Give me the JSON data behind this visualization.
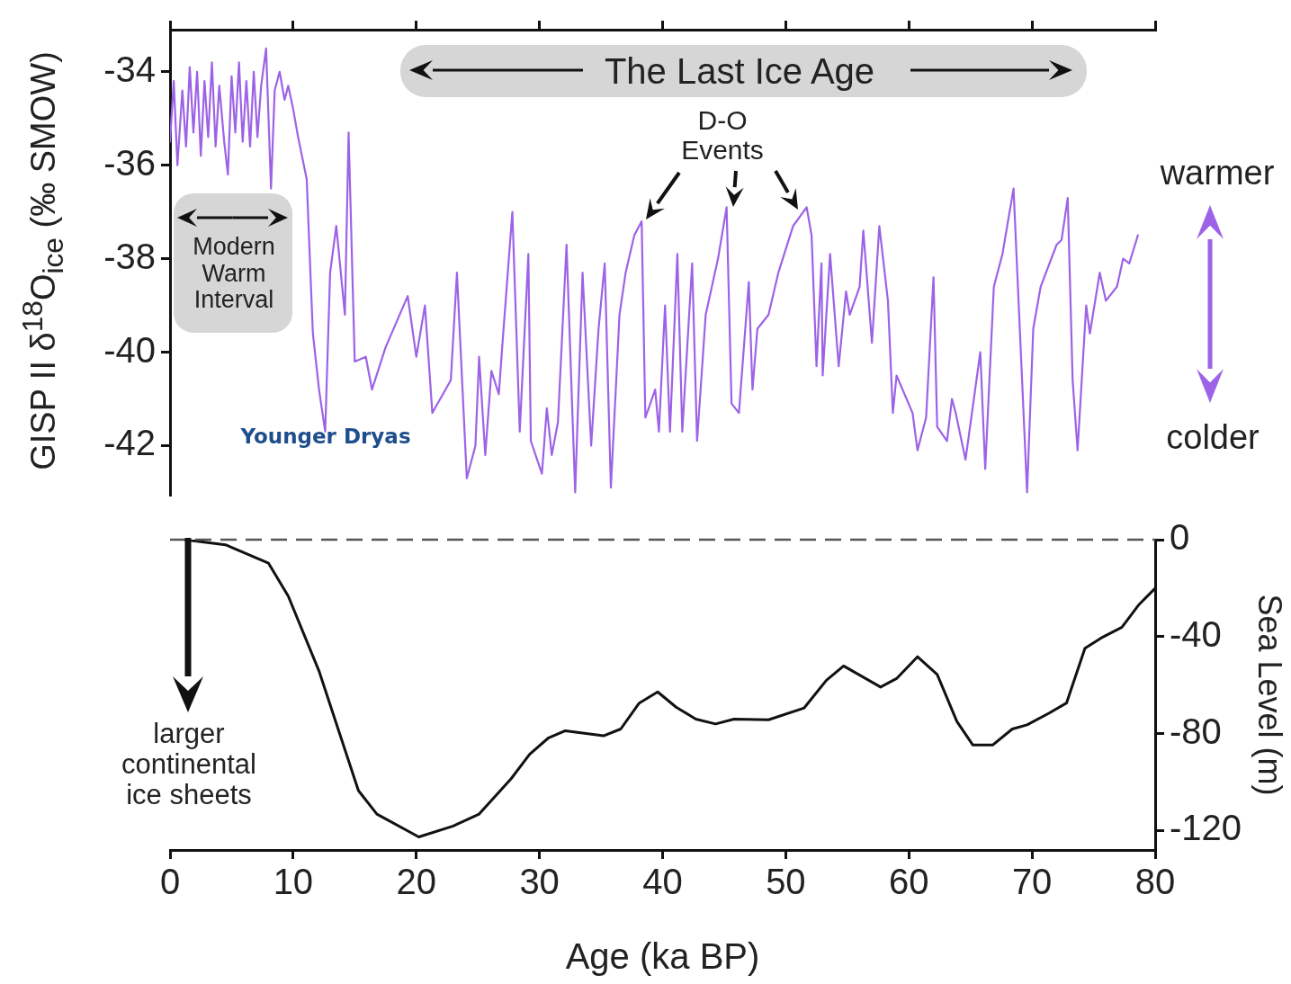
{
  "chart_data": [
    {
      "type": "line",
      "ylabel": "GISP II δ$^{18}$O$_{ice}$ (‰ SMOW)",
      "xlim": [
        0,
        80
      ],
      "xticks": [
        0,
        10,
        20,
        30,
        40,
        50,
        60,
        70,
        80
      ],
      "ylim": [
        -43.05,
        -33.1
      ],
      "yticks": [
        -34,
        -36,
        -38,
        -40,
        -42
      ],
      "tick_labels": "y",
      "legend": false,
      "annotations": [
        "The Last Ice Age",
        "D-O Events",
        "Modern Warm Interval",
        "Younger Dryas",
        "warmer",
        "colder"
      ],
      "series": [
        {
          "color": "#9d63e6",
          "x": [
            0,
            0.3,
            0.6,
            1.0,
            1.3,
            1.6,
            1.9,
            2.2,
            2.5,
            2.8,
            3.1,
            3.4,
            3.7,
            4.0,
            4.4,
            4.7,
            5.0,
            5.3,
            5.6,
            5.9,
            6.2,
            6.5,
            6.8,
            7.1,
            7.4,
            7.8,
            8.0,
            8.2,
            8.5,
            8.9,
            9.3,
            9.6,
            10.0,
            10.4,
            11.1,
            11.4,
            11.6,
            12.1,
            12.6,
            13.0,
            13.5,
            14.2,
            14.5,
            15.0,
            15.9,
            16.4,
            17.5,
            19.3,
            20.0,
            20.7,
            21.3,
            22.8,
            23.3,
            24.1,
            24.8,
            25.1,
            25.6,
            26.1,
            26.7,
            27.0,
            27.8,
            28.4,
            29.1,
            29.3,
            30.2,
            30.6,
            31.0,
            31.5,
            32.2,
            32.9,
            33.5,
            34.2,
            34.8,
            35.3,
            35.8,
            36.5,
            37.0,
            37.7,
            38.3,
            38.6,
            39.4,
            39.7,
            40.2,
            40.6,
            41.2,
            41.6,
            42.4,
            42.8,
            43.5,
            44.5,
            45.2,
            45.6,
            46.2,
            47.0,
            47.3,
            47.7,
            48.6,
            49.4,
            50.6,
            51.7,
            52.1,
            52.5,
            52.9,
            53.0,
            53.6,
            54.3,
            54.9,
            55.2,
            56.0,
            56.3,
            57.0,
            57.6,
            58.3,
            58.7,
            59.0,
            60.3,
            60.7,
            61.4,
            62.0,
            62.3,
            63.1,
            63.5,
            63.8,
            64.6,
            65.8,
            66.2,
            66.9,
            67.6,
            68.5,
            69.6,
            70.1,
            70.7,
            72.0,
            72.4,
            72.9,
            73.3,
            73.7,
            74.4,
            74.7,
            75.5,
            76.0,
            76.9,
            77.4,
            77.9,
            78.6
          ],
          "values": [
            -35.5,
            -34.2,
            -36.0,
            -34.4,
            -35.6,
            -33.9,
            -35.3,
            -34.0,
            -35.8,
            -34.2,
            -35.4,
            -33.8,
            -35.6,
            -34.3,
            -35.5,
            -36.2,
            -34.1,
            -35.3,
            -33.8,
            -35.5,
            -34.2,
            -35.6,
            -34.0,
            -35.4,
            -34.3,
            -33.5,
            -35.0,
            -36.5,
            -34.4,
            -34.0,
            -34.6,
            -34.3,
            -34.8,
            -35.4,
            -36.3,
            -38.3,
            -39.6,
            -40.8,
            -41.7,
            -38.3,
            -37.3,
            -39.2,
            -35.3,
            -40.2,
            -40.1,
            -40.8,
            -39.9,
            -38.8,
            -40.1,
            -39.0,
            -41.3,
            -40.6,
            -38.3,
            -42.7,
            -42.0,
            -40.1,
            -42.2,
            -40.4,
            -40.9,
            -39.8,
            -37.0,
            -41.7,
            -37.9,
            -41.9,
            -42.6,
            -41.2,
            -42.2,
            -41.5,
            -37.7,
            -43.0,
            -38.3,
            -42.0,
            -39.5,
            -38.1,
            -42.9,
            -39.2,
            -38.3,
            -37.5,
            -37.2,
            -41.4,
            -40.8,
            -41.7,
            -39.0,
            -41.7,
            -37.9,
            -41.7,
            -38.1,
            -41.9,
            -39.2,
            -38.0,
            -36.9,
            -41.1,
            -41.3,
            -38.5,
            -40.8,
            -39.5,
            -39.2,
            -38.3,
            -37.3,
            -36.9,
            -37.5,
            -40.3,
            -38.1,
            -40.5,
            -37.9,
            -40.3,
            -38.7,
            -39.2,
            -38.6,
            -37.4,
            -39.8,
            -37.3,
            -38.9,
            -41.3,
            -40.5,
            -41.3,
            -42.1,
            -41.4,
            -38.4,
            -41.6,
            -41.9,
            -41.0,
            -41.3,
            -42.3,
            -40.0,
            -42.5,
            -38.6,
            -37.9,
            -36.5,
            -43.0,
            -39.5,
            -38.6,
            -37.7,
            -37.6,
            -36.7,
            -40.6,
            -42.1,
            -39.0,
            -39.6,
            -38.3,
            -38.9,
            -38.6,
            -38.0,
            -38.1,
            -37.5
          ]
        }
      ]
    },
    {
      "type": "line",
      "xlabel": "Age (ka BP)",
      "y2label": "Sea Level (m)",
      "xlim": [
        0,
        80
      ],
      "xticks": [
        0,
        10,
        20,
        30,
        40,
        50,
        60,
        70,
        80
      ],
      "y2lim": [
        -128,
        0
      ],
      "y2ticks": [
        0,
        -40,
        -80,
        -120
      ],
      "legend": false,
      "annotations": [
        "larger continental ice sheets"
      ],
      "ref_lines": [
        {
          "axis": "y2",
          "value": 0,
          "color": "#555555",
          "line_style": "dashed"
        }
      ],
      "series": [
        {
          "color": "#111111",
          "axis": "y2",
          "x": [
            1.2,
            4.5,
            8.0,
            9.6,
            12.1,
            15.3,
            16.8,
            20.2,
            23.0,
            25.1,
            27.7,
            29.2,
            30.7,
            32.1,
            35.2,
            36.6,
            38.1,
            39.6,
            41.1,
            42.7,
            44.3,
            45.8,
            48.6,
            51.5,
            53.3,
            54.7,
            57.7,
            59.0,
            60.7,
            62.3,
            63.9,
            65.2,
            66.8,
            68.4,
            69.6,
            71.4,
            72.8,
            74.3,
            75.6,
            77.3,
            78.7,
            80
          ],
          "values": [
            0,
            -2.1,
            -9.7,
            -23.3,
            -54.2,
            -103.5,
            -113.2,
            -122.6,
            -118.1,
            -113.2,
            -98.6,
            -88.5,
            -81.9,
            -78.8,
            -80.9,
            -78.1,
            -67.4,
            -62.8,
            -69.1,
            -74.0,
            -76.0,
            -74.0,
            -74.3,
            -69.4,
            -58.0,
            -52.1,
            -60.8,
            -57.3,
            -48.3,
            -55.6,
            -75.0,
            -84.7,
            -84.7,
            -78.1,
            -76.4,
            -71.5,
            -67.4,
            -44.8,
            -40.6,
            -36.1,
            -26.7,
            -20.1
          ]
        }
      ]
    }
  ]
}
